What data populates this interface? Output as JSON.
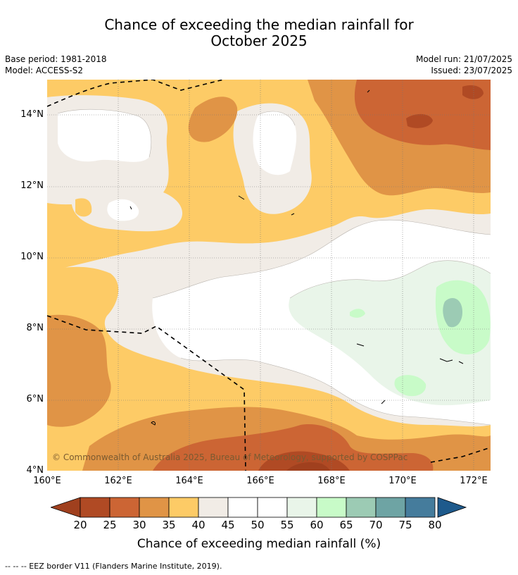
{
  "title_line1": "Chance of exceeding the median rainfall for",
  "title_line2": "October 2025",
  "meta": {
    "base_period": "Base period: 1981-2018",
    "model": "Model: ACCESS-S2",
    "model_run": "Model run: 21/07/2025",
    "issued": "Issued: 23/07/2025"
  },
  "map": {
    "lat_labels": [
      "14°N",
      "12°N",
      "10°N",
      "8°N",
      "6°N",
      "4°N"
    ],
    "lon_labels": [
      "160°E",
      "162°E",
      "164°E",
      "166°E",
      "168°E",
      "170°E",
      "172°E"
    ],
    "copyright": "© Commonwealth of Australia 2025, Bureau of Meteorology, supported by COSPPac"
  },
  "colorbar": {
    "ticks": [
      "20",
      "25",
      "30",
      "35",
      "40",
      "45",
      "50",
      "55",
      "60",
      "65",
      "70",
      "75",
      "80"
    ],
    "colors": {
      "below_20": "#a0401e",
      "20-25": "#b04a24",
      "25-30": "#cc6534",
      "30-35": "#e09446",
      "35-40": "#fdcb66",
      "40-45": "#f1ece6",
      "45-50": "#ffffff",
      "50-55": "#ffffff",
      "55-60": "#e9f5e9",
      "60-65": "#c8fbc8",
      "65-70": "#9ccbb4",
      "70-75": "#6ea4a4",
      "75-80": "#457c9c",
      "above_80": "#1e5a8c"
    },
    "label": "Chance of exceeding median rainfall (%)"
  },
  "footnote": "--  --  -- EEZ border V11 (Flanders Marine Institute, 2019)."
}
